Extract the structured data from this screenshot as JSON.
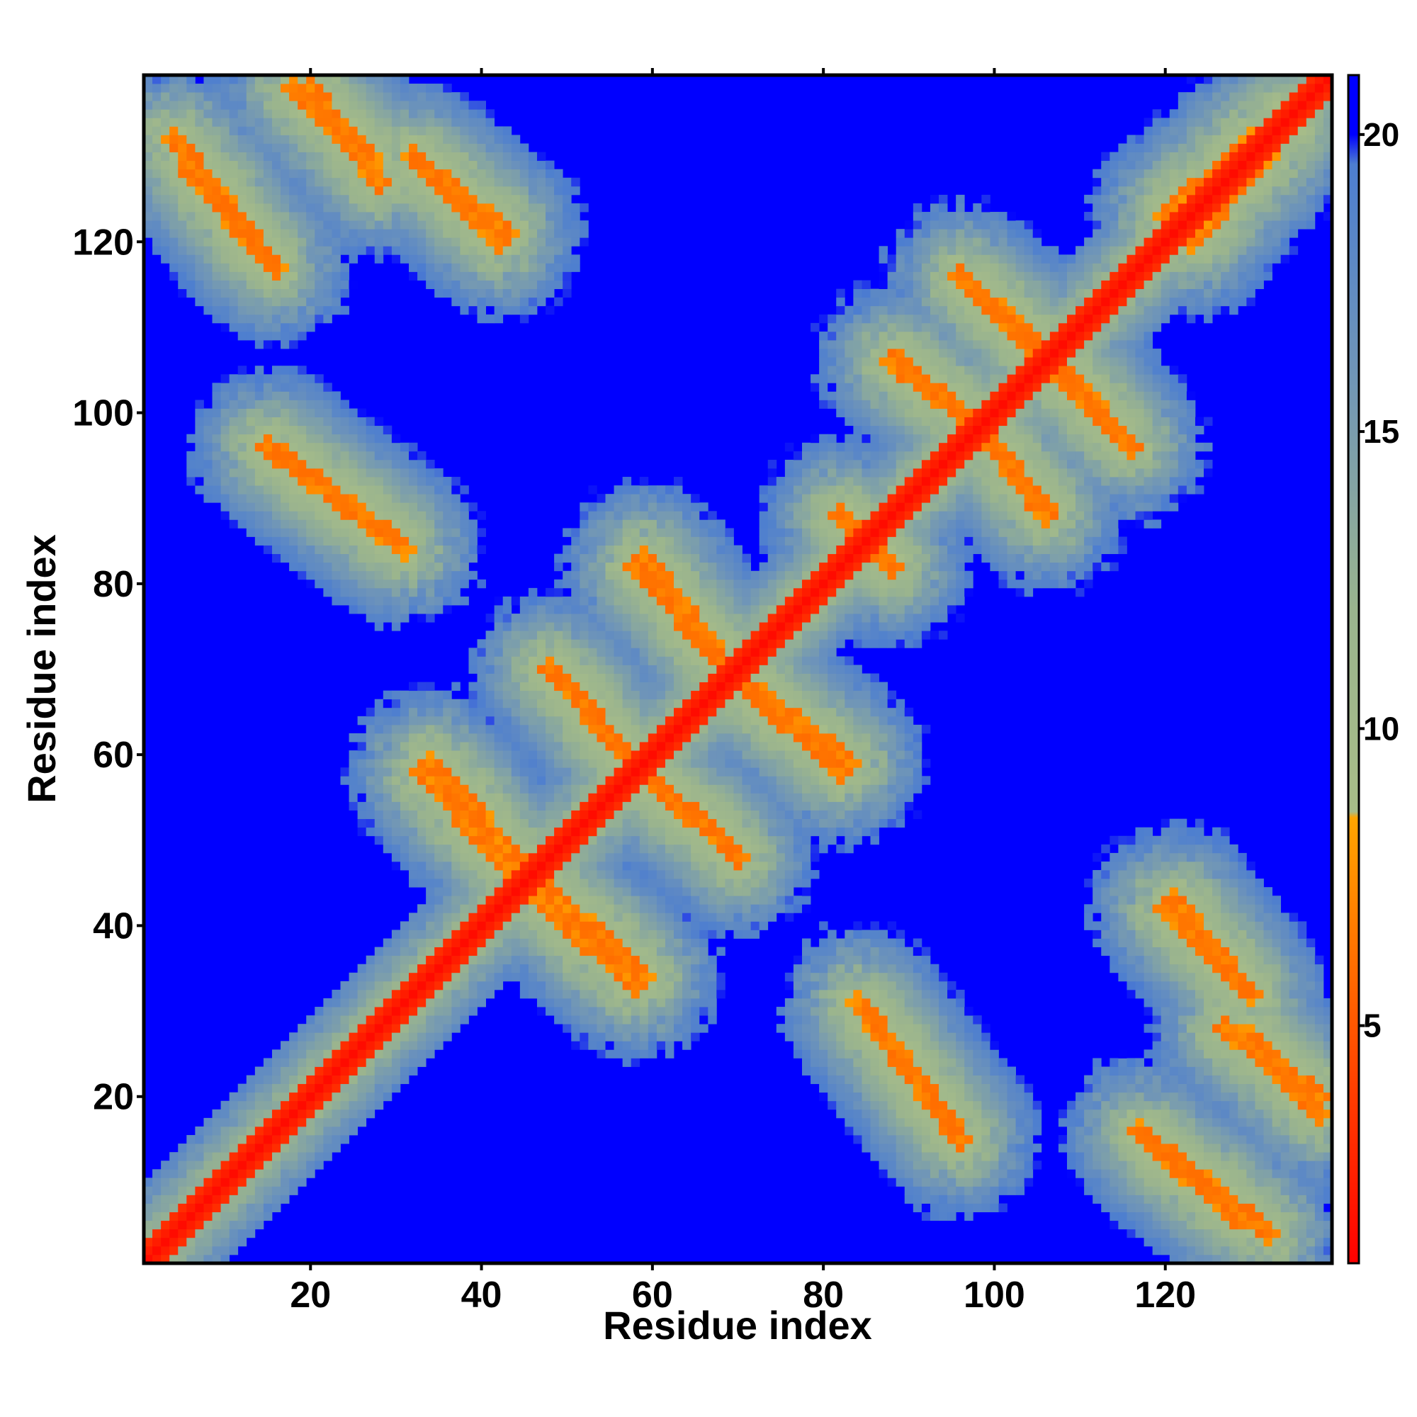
{
  "chart_data": {
    "type": "heatmap",
    "title": "",
    "xlabel": "Residue index",
    "ylabel": "Residue index",
    "n_residues": 139,
    "xlim": [
      1,
      139
    ],
    "ylim": [
      1,
      139
    ],
    "x_ticks": [
      20,
      40,
      60,
      80,
      100,
      120
    ],
    "y_ticks": [
      20,
      40,
      60,
      80,
      100,
      120
    ],
    "colorbar": {
      "ticks": [
        5,
        10,
        15,
        20
      ],
      "range": [
        1,
        21
      ],
      "colors": [
        {
          "value": 1,
          "color": "#ff0000"
        },
        {
          "value": 4,
          "color": "#ff4000"
        },
        {
          "value": 8.5,
          "color": "#ffa500"
        },
        {
          "value": 8.6,
          "color": "#a8bd88"
        },
        {
          "value": 12,
          "color": "#9ab48e"
        },
        {
          "value": 16,
          "color": "#6f95b8"
        },
        {
          "value": 19.5,
          "color": "#4d7ed0"
        },
        {
          "value": 20,
          "color": "#0000ff"
        },
        {
          "value": 21,
          "color": "#0000ff"
        }
      ]
    },
    "cutoff_max": 20,
    "background_value": 21,
    "diagonal_value": 1.5,
    "contact_bands": [
      {
        "from": [
          4,
          132
        ],
        "to": [
          15,
          118
        ],
        "value": 6
      },
      {
        "from": [
          20,
          138
        ],
        "to": [
          28,
          127
        ],
        "value": 6
      },
      {
        "from": [
          33,
          129
        ],
        "to": [
          43,
          121
        ],
        "value": 6
      },
      {
        "from": [
          15,
          96
        ],
        "to": [
          30,
          85
        ],
        "value": 6
      },
      {
        "from": [
          34,
          59
        ],
        "to": [
          45,
          47
        ],
        "value": 6
      },
      {
        "from": [
          47,
          43
        ],
        "to": [
          58,
          33
        ],
        "value": 6
      },
      {
        "from": [
          48,
          70
        ],
        "to": [
          58,
          59
        ],
        "value": 6
      },
      {
        "from": [
          60,
          57
        ],
        "to": [
          70,
          48
        ],
        "value": 6
      },
      {
        "from": [
          59,
          83
        ],
        "to": [
          68,
          71
        ],
        "value": 6
      },
      {
        "from": [
          70,
          69
        ],
        "to": [
          82,
          58
        ],
        "value": 6
      },
      {
        "from": [
          82,
          88
        ],
        "to": [
          88,
          82
        ],
        "value": 6
      },
      {
        "from": [
          89,
          106
        ],
        "to": [
          98,
          98
        ],
        "value": 6
      },
      {
        "from": [
          100,
          96
        ],
        "to": [
          106,
          88
        ],
        "value": 6
      },
      {
        "from": [
          98,
          114
        ],
        "to": [
          108,
          104
        ],
        "value": 6
      },
      {
        "from": [
          108,
          105
        ],
        "to": [
          116,
          96
        ],
        "value": 6
      },
      {
        "from": [
          84,
          31
        ],
        "to": [
          96,
          15
        ],
        "value": 6
      },
      {
        "from": [
          120,
          42
        ],
        "to": [
          130,
          32
        ],
        "value": 6
      },
      {
        "from": [
          130,
          27
        ],
        "to": [
          138,
          18
        ],
        "value": 6
      },
      {
        "from": [
          117,
          16
        ],
        "to": [
          128,
          6
        ],
        "value": 6
      },
      {
        "from": [
          120,
          123
        ],
        "to": [
          134,
          135
        ],
        "value": 6
      }
    ]
  }
}
